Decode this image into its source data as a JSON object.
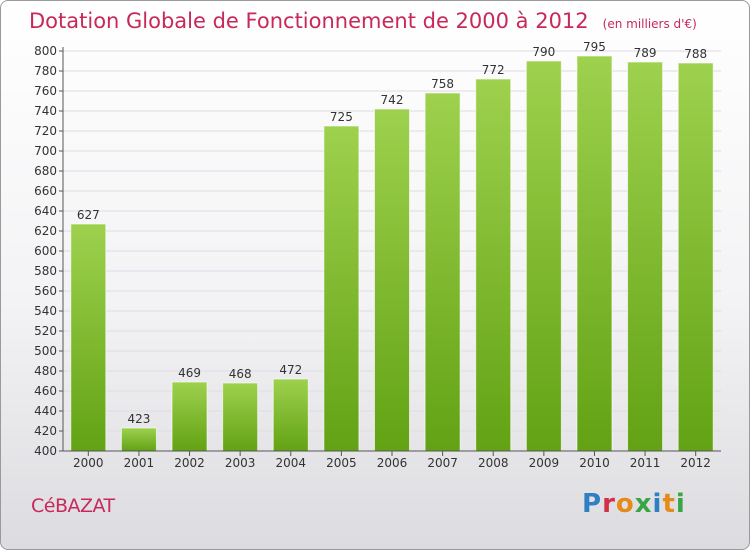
{
  "header": {
    "title": "Dotation Globale de Fonctionnement de 2000 à 2012",
    "unit": "(en milliers d'€)"
  },
  "footer": {
    "city": "CéBAZAT",
    "logo_text": "Proxiti",
    "logo_colors": [
      "#2f7fc4",
      "#d0304a",
      "#e58b1b",
      "#3aa545",
      "#2f7fc4",
      "#e58b1b",
      "#3aa545"
    ]
  },
  "chart_data": {
    "type": "bar",
    "categories": [
      "2000",
      "2001",
      "2002",
      "2003",
      "2004",
      "2005",
      "2006",
      "2007",
      "2008",
      "2009",
      "2010",
      "2011",
      "2012"
    ],
    "values": [
      627,
      423,
      469,
      468,
      472,
      725,
      742,
      758,
      772,
      790,
      795,
      789,
      788
    ],
    "ylim": [
      400,
      800
    ],
    "ytick_step": 20,
    "grid": true,
    "bar_color_top": "#9ed14e",
    "bar_color_bottom": "#62a214",
    "grid_color": "#dcdce4",
    "axis_color": "#555555"
  }
}
